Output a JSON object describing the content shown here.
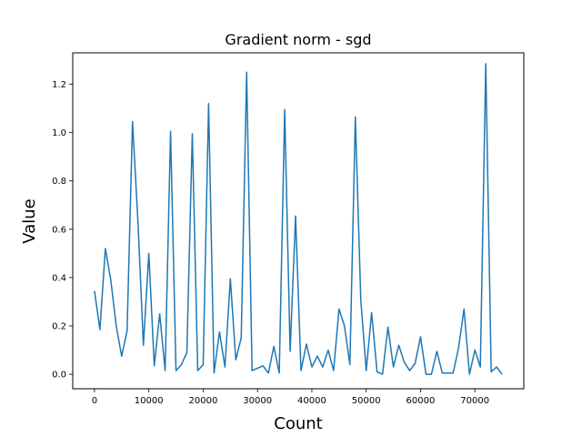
{
  "chart_data": {
    "type": "line",
    "title": "Gradient norm - sgd",
    "xlabel": "Count",
    "ylabel": "Value",
    "xlim": [
      -4000,
      79000
    ],
    "ylim": [
      -0.06,
      1.33
    ],
    "xticks": [
      0,
      10000,
      20000,
      30000,
      40000,
      50000,
      60000,
      70000
    ],
    "xtick_labels": [
      "0",
      "10000",
      "20000",
      "30000",
      "40000",
      "50000",
      "60000",
      "70000"
    ],
    "yticks": [
      0.0,
      0.2,
      0.4,
      0.6,
      0.8,
      1.0,
      1.2
    ],
    "ytick_labels": [
      "0.0",
      "0.2",
      "0.4",
      "0.6",
      "0.8",
      "1.0",
      "1.2"
    ],
    "grid": false,
    "series": [
      {
        "color": "#1f77b4",
        "x": [
          0,
          1000,
          2000,
          3000,
          4000,
          5000,
          6000,
          7000,
          8000,
          9000,
          10000,
          11000,
          12000,
          13000,
          14000,
          15000,
          16000,
          17000,
          18000,
          19000,
          20000,
          21000,
          22000,
          23000,
          24000,
          25000,
          26000,
          27000,
          28000,
          29000,
          30000,
          31000,
          32000,
          33000,
          34000,
          35000,
          36000,
          37000,
          38000,
          39000,
          40000,
          41000,
          42000,
          43000,
          44000,
          45000,
          46000,
          47000,
          48000,
          49000,
          50000,
          51000,
          52000,
          53000,
          54000,
          55000,
          56000,
          57000,
          58000,
          59000,
          60000,
          61000,
          62000,
          63000,
          64000,
          65000,
          66000,
          67000,
          68000,
          69000,
          70000,
          71000,
          72000,
          73000,
          74000,
          75000
        ],
        "y": [
          0.345,
          0.185,
          0.52,
          0.39,
          0.2,
          0.075,
          0.18,
          1.045,
          0.63,
          0.12,
          0.5,
          0.035,
          0.25,
          0.015,
          1.005,
          0.015,
          0.04,
          0.09,
          0.995,
          0.015,
          0.04,
          1.12,
          0.005,
          0.175,
          0.03,
          0.395,
          0.06,
          0.15,
          1.25,
          0.015,
          0.025,
          0.035,
          0.005,
          0.115,
          0.005,
          1.095,
          0.095,
          0.655,
          0.015,
          0.125,
          0.03,
          0.075,
          0.03,
          0.1,
          0.015,
          0.27,
          0.2,
          0.04,
          1.065,
          0.31,
          0.015,
          0.255,
          0.01,
          0.0,
          0.195,
          0.03,
          0.12,
          0.05,
          0.015,
          0.045,
          0.155,
          0.0,
          0.0,
          0.095,
          0.005,
          0.005,
          0.005,
          0.11,
          0.27,
          0.0,
          0.1,
          0.03,
          1.285,
          0.01,
          0.03,
          0.0
        ]
      }
    ]
  }
}
